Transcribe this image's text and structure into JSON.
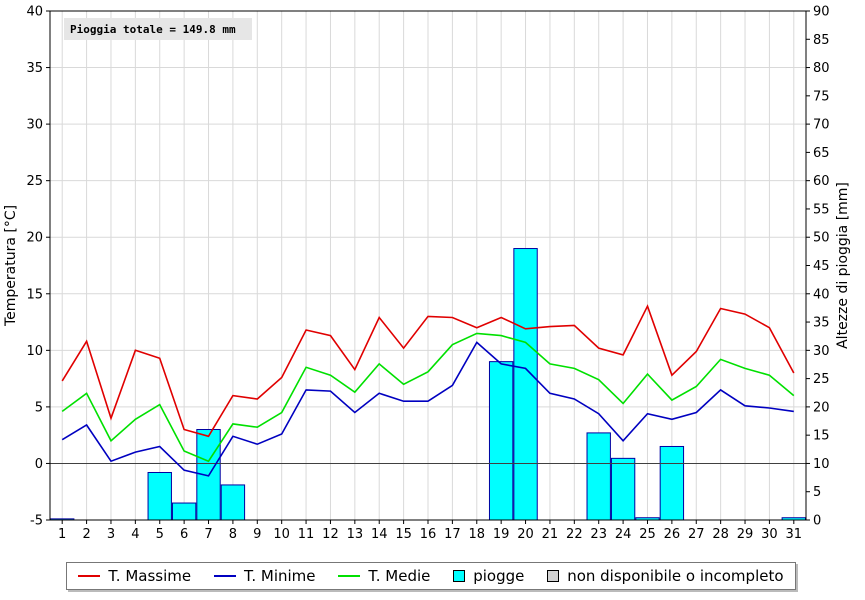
{
  "chart_data": {
    "type": "bar+line",
    "x": [
      1,
      2,
      3,
      4,
      5,
      6,
      7,
      8,
      9,
      10,
      11,
      12,
      13,
      14,
      15,
      16,
      17,
      18,
      19,
      20,
      21,
      22,
      23,
      24,
      25,
      26,
      27,
      28,
      29,
      30,
      31
    ],
    "ylabel": "Temperatura [°C]",
    "y2label": "Altezze di pioggia [mm]",
    "ylim": [
      -5,
      40
    ],
    "y2lim": [
      0,
      90
    ],
    "yticks": [
      -5,
      0,
      5,
      10,
      15,
      20,
      25,
      30,
      35,
      40
    ],
    "y2ticks": [
      0,
      5,
      10,
      15,
      20,
      25,
      30,
      35,
      40,
      45,
      50,
      55,
      60,
      65,
      70,
      75,
      80,
      85,
      90
    ],
    "grid": true,
    "annotation": "Pioggia totale = 149.8 mm",
    "series": [
      {
        "name": "T. Massime",
        "type": "line",
        "axis": "left",
        "color": "#e00000",
        "values": [
          7.3,
          10.8,
          4.0,
          10.0,
          9.3,
          3.0,
          2.4,
          6.0,
          5.7,
          7.6,
          11.8,
          11.3,
          8.3,
          12.9,
          10.2,
          13.0,
          12.9,
          12.0,
          12.9,
          11.9,
          12.1,
          12.2,
          10.2,
          9.6,
          13.9,
          7.8,
          9.9,
          13.7,
          13.2,
          12.0,
          8.0
        ]
      },
      {
        "name": "T. Minime",
        "type": "line",
        "axis": "left",
        "color": "#0000c0",
        "values": [
          2.1,
          3.4,
          0.2,
          1.0,
          1.5,
          -0.6,
          -1.1,
          2.4,
          1.7,
          2.6,
          6.5,
          6.4,
          4.5,
          6.2,
          5.5,
          5.5,
          6.9,
          10.7,
          8.8,
          8.4,
          6.2,
          5.7,
          4.4,
          2.0,
          4.4,
          3.9,
          4.5,
          6.5,
          5.1,
          4.9,
          4.6
        ]
      },
      {
        "name": "T. Medie",
        "type": "line",
        "axis": "left",
        "color": "#00e000",
        "values": [
          4.6,
          6.2,
          2.0,
          3.9,
          5.2,
          1.1,
          0.2,
          3.5,
          3.2,
          4.5,
          8.5,
          7.8,
          6.3,
          8.8,
          7.0,
          8.1,
          10.5,
          11.5,
          11.3,
          10.7,
          8.8,
          8.4,
          7.4,
          5.3,
          7.9,
          5.6,
          6.8,
          9.2,
          8.4,
          7.8,
          6.0
        ]
      },
      {
        "name": "piogge",
        "type": "bar",
        "axis": "right",
        "color": "#00ffff",
        "values": [
          0.2,
          0,
          0,
          0,
          8.4,
          3.0,
          16.0,
          6.2,
          0,
          0,
          0,
          0,
          0,
          0,
          0,
          0,
          0,
          0,
          28.0,
          48.0,
          0,
          0,
          15.4,
          10.9,
          0.4,
          13.0,
          0,
          0,
          0,
          0,
          0.4
        ]
      }
    ],
    "legend": {
      "position": "bottom",
      "entries": [
        {
          "label": "T. Massime",
          "kind": "line",
          "color": "#e00000"
        },
        {
          "label": "T. Minime",
          "kind": "line",
          "color": "#0000c0"
        },
        {
          "label": "T. Medie",
          "kind": "line",
          "color": "#00e000"
        },
        {
          "label": "piogge",
          "kind": "box",
          "color": "#00ffff"
        },
        {
          "label": "non disponibile o incompleto",
          "kind": "box",
          "color": "#d3d3d3"
        }
      ]
    }
  }
}
